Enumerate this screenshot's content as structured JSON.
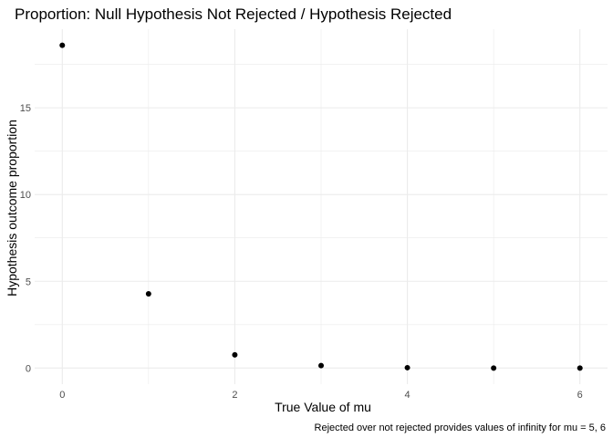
{
  "chart_data": {
    "type": "scatter",
    "title": "Proportion: Null Hypothesis Not Rejected / Hypothesis Rejected",
    "xlabel": "True Value of mu",
    "ylabel": "Hypothesis outcome proportion",
    "caption": "Rejected over not rejected provides values of infinity for mu = 5, 6",
    "x": [
      0,
      1,
      2,
      3,
      4,
      5,
      6
    ],
    "y": [
      18.6,
      4.28,
      0.76,
      0.14,
      0.02,
      0.0,
      0.0
    ],
    "xlim": [
      -0.32,
      6.32
    ],
    "ylim": [
      -0.93,
      19.53
    ],
    "x_major_ticks": [
      0,
      2,
      4,
      6
    ],
    "x_minor_ticks": [
      1,
      3,
      5
    ],
    "y_major_ticks": [
      0,
      5,
      10,
      15
    ],
    "y_minor_ticks": [
      2.5,
      7.5,
      12.5,
      17.5
    ],
    "x_tick_labels": [
      "0",
      "2",
      "4",
      "6"
    ],
    "y_tick_labels": [
      "0",
      "5",
      "10",
      "15"
    ],
    "grid": true,
    "point_color": "#000000",
    "grid_color": "#ebebeb"
  }
}
